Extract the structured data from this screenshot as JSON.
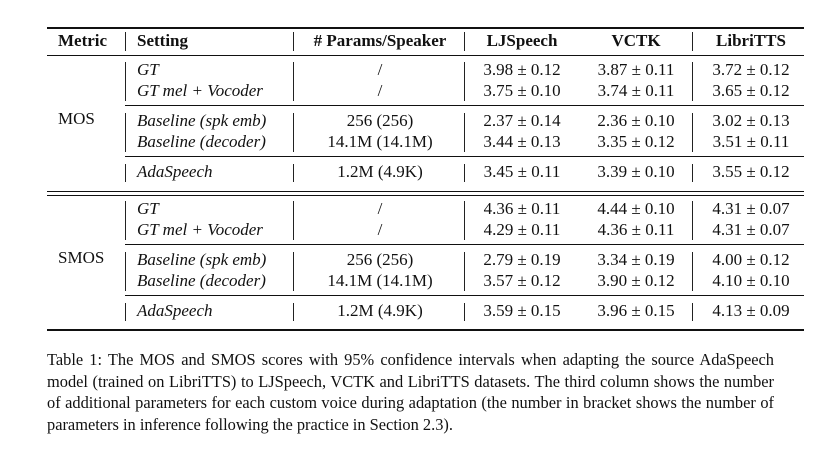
{
  "table": {
    "headers": [
      "Metric",
      "Setting",
      "# Params/Speaker",
      "LJSpeech",
      "VCTK",
      "LibriTTS"
    ],
    "groups": [
      {
        "metric": "MOS",
        "blocks": [
          [
            {
              "setting": "GT",
              "params": "/",
              "ljspeech": "3.98 ± 0.12",
              "vctk": "3.87 ± 0.11",
              "libritts": "3.72 ± 0.12"
            },
            {
              "setting": "GT mel + Vocoder",
              "params": "/",
              "ljspeech": "3.75 ± 0.10",
              "vctk": "3.74 ± 0.11",
              "libritts": "3.65 ± 0.12"
            }
          ],
          [
            {
              "setting": "Baseline (spk emb)",
              "params": "256 (256)",
              "ljspeech": "2.37 ± 0.14",
              "vctk": "2.36 ± 0.10",
              "libritts": "3.02 ± 0.13"
            },
            {
              "setting": "Baseline (decoder)",
              "params": "14.1M (14.1M)",
              "ljspeech": "3.44 ± 0.13",
              "vctk": "3.35 ± 0.12",
              "libritts": "3.51 ± 0.11"
            }
          ],
          [
            {
              "setting": "AdaSpeech",
              "params": "1.2M (4.9K)",
              "ljspeech": "3.45 ± 0.11",
              "vctk": "3.39 ± 0.10",
              "libritts": "3.55 ± 0.12"
            }
          ]
        ]
      },
      {
        "metric": "SMOS",
        "blocks": [
          [
            {
              "setting": "GT",
              "params": "/",
              "ljspeech": "4.36 ± 0.11",
              "vctk": "4.44 ± 0.10",
              "libritts": "4.31 ± 0.07"
            },
            {
              "setting": "GT mel + Vocoder",
              "params": "/",
              "ljspeech": "4.29 ± 0.11",
              "vctk": "4.36 ± 0.11",
              "libritts": "4.31 ± 0.07"
            }
          ],
          [
            {
              "setting": "Baseline (spk emb)",
              "params": "256 (256)",
              "ljspeech": "2.79 ± 0.19",
              "vctk": "3.34 ± 0.19",
              "libritts": "4.00 ± 0.12"
            },
            {
              "setting": "Baseline (decoder)",
              "params": "14.1M (14.1M)",
              "ljspeech": "3.57 ± 0.12",
              "vctk": "3.90 ± 0.12",
              "libritts": "4.10 ± 0.10"
            }
          ],
          [
            {
              "setting": "AdaSpeech",
              "params": "1.2M (4.9K)",
              "ljspeech": "3.59 ± 0.15",
              "vctk": "3.96 ± 0.15",
              "libritts": "4.13 ± 0.09"
            }
          ]
        ]
      }
    ]
  },
  "caption": "Table 1: The MOS and SMOS scores with 95% confidence intervals when adapting the source AdaSpeech model (trained on LibriTTS) to LJSpeech, VCTK and LibriTTS datasets. The third column shows the number of additional parameters for each custom voice during adaptation (the number in bracket shows the number of parameters in inference following the practice in Section 2.3)."
}
